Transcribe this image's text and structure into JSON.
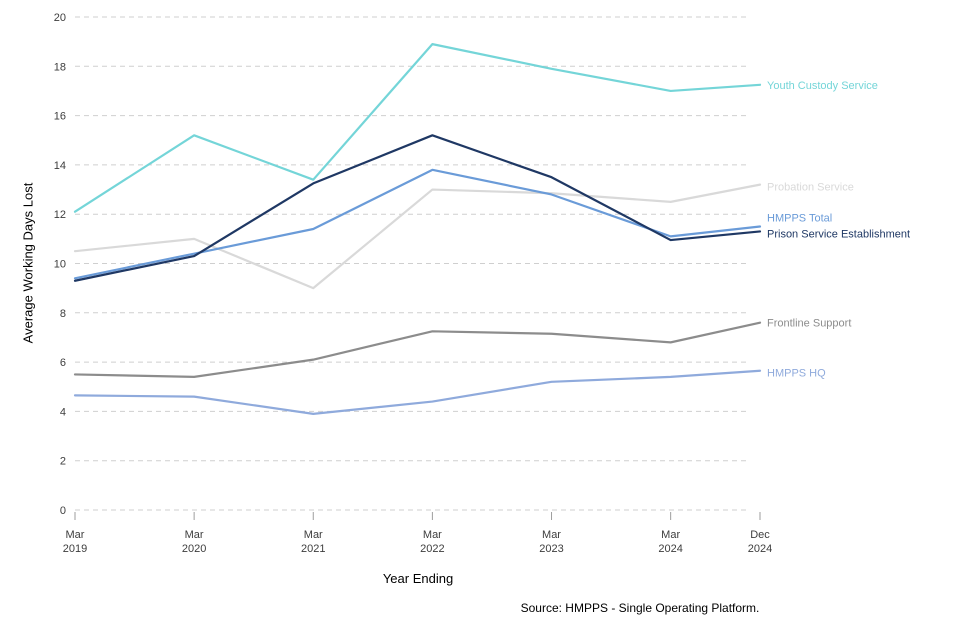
{
  "chart_data": {
    "type": "line",
    "title": "",
    "xlabel": "Year Ending",
    "ylabel": "Average Working Days Lost",
    "source": "Source: HMPPS - Single Operating Platform.",
    "ylim": [
      0,
      20
    ],
    "ytick_step": 2,
    "grid": "dashed-horizontal",
    "legend_position": "labels-right-of-lines",
    "x_tick_labels": [
      [
        "Mar",
        "2019"
      ],
      [
        "Mar",
        "2020"
      ],
      [
        "Mar",
        "2021"
      ],
      [
        "Mar",
        "2022"
      ],
      [
        "Mar",
        "2023"
      ],
      [
        "Mar",
        "2024"
      ],
      [
        "Dec",
        "2024"
      ]
    ],
    "x_months_from_start": [
      0,
      12,
      24,
      36,
      48,
      60,
      69
    ],
    "series": [
      {
        "name": "Youth Custody Service",
        "color": "#74d5d8",
        "label_dy": 0,
        "values": [
          12.1,
          15.2,
          13.4,
          18.9,
          17.9,
          17.0,
          17.25
        ]
      },
      {
        "name": "Probation Service",
        "color": "#d9d9d9",
        "label_dy": 2,
        "values": [
          10.5,
          11.0,
          9.0,
          13.0,
          12.85,
          12.5,
          13.2
        ]
      },
      {
        "name": "HMPPS Total",
        "color": "#6a9bd8",
        "label_dy": -9,
        "values": [
          9.4,
          10.4,
          11.4,
          13.8,
          12.8,
          11.1,
          11.5
        ]
      },
      {
        "name": "Prison Service Establishment",
        "color": "#1f3864",
        "label_dy": 2,
        "values": [
          9.3,
          10.3,
          13.25,
          15.2,
          13.5,
          10.95,
          11.3
        ]
      },
      {
        "name": "Frontline Support",
        "color": "#8c8c8c",
        "label_dy": 0,
        "values": [
          5.5,
          5.4,
          6.1,
          7.25,
          7.15,
          6.8,
          7.6
        ]
      },
      {
        "name": "HMPPS HQ",
        "color": "#8faadc",
        "label_dy": 2,
        "values": [
          4.65,
          4.6,
          3.9,
          4.4,
          5.2,
          5.4,
          5.65
        ]
      }
    ]
  }
}
